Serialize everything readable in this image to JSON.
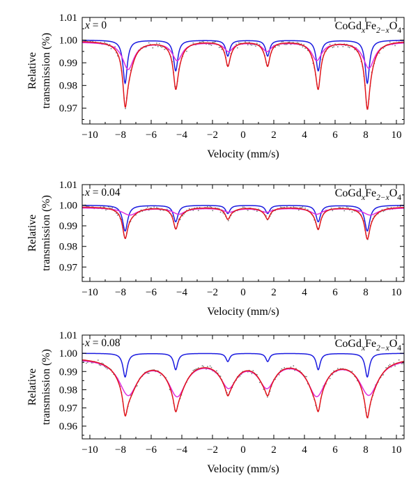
{
  "figure": {
    "x_axis_label": "Velocity (mm/s)",
    "y_axis_label_line1": "Relative",
    "y_axis_label_line2": "transmission (%)",
    "formula_parts": [
      "CoGd",
      "x",
      "Fe",
      "2−x",
      "O",
      "4"
    ],
    "colors": {
      "total_fit": "#e0141b",
      "sextet_blue": "#1a1adf",
      "sextet_magenta": "#e02ee0",
      "experimental_points": "#777777"
    }
  },
  "chart_data": [
    {
      "type": "line",
      "annotation": "x = 0",
      "title": "CoGdxFe2−xO4",
      "xlabel": "Velocity (mm/s)",
      "ylabel": "Relative transmission (%)",
      "xlim": [
        -10.5,
        10.5
      ],
      "ylim": [
        0.963,
        1.01
      ],
      "xticks": [
        "−10",
        "−8",
        "−6",
        "−4",
        "−2",
        "0",
        "2",
        "4",
        "6",
        "8",
        "10"
      ],
      "yticks": [
        "1.01",
        "1.00",
        "0.99",
        "0.98",
        "0.97"
      ],
      "ytick_values": [
        1.01,
        1.0,
        0.99,
        0.98,
        0.97
      ],
      "grid": false,
      "baseline": 0.9995,
      "series": [
        {
          "role": "blue-sextet",
          "color": "#1a1adf",
          "baseline": 1.0,
          "lines": [
            {
              "pos": -7.7,
              "depth": 0.019,
              "width": 0.17
            },
            {
              "pos": -4.4,
              "depth": 0.0135,
              "width": 0.17
            },
            {
              "pos": -1.0,
              "depth": 0.007,
              "width": 0.16
            },
            {
              "pos": 1.6,
              "depth": 0.007,
              "width": 0.16
            },
            {
              "pos": 4.9,
              "depth": 0.0135,
              "width": 0.17
            },
            {
              "pos": 8.1,
              "depth": 0.019,
              "width": 0.17
            }
          ]
        },
        {
          "role": "magenta-sextet",
          "color": "#e02ee0",
          "baseline": 0.9992,
          "lines": [
            {
              "pos": -7.5,
              "depth": 0.012,
              "width": 0.45
            },
            {
              "pos": -4.3,
              "depth": 0.008,
              "width": 0.4
            },
            {
              "pos": -0.95,
              "depth": 0.004,
              "width": 0.35
            },
            {
              "pos": 1.55,
              "depth": 0.004,
              "width": 0.35
            },
            {
              "pos": 4.8,
              "depth": 0.008,
              "width": 0.4
            },
            {
              "pos": 8.2,
              "depth": 0.0115,
              "width": 0.45
            }
          ]
        },
        {
          "role": "total-fit",
          "color": "#e0141b",
          "sum_of": [
            "blue-sextet",
            "magenta-sextet"
          ]
        }
      ]
    },
    {
      "type": "line",
      "annotation": "x = 0.04",
      "title": "CoGdxFe2−xO4",
      "xlabel": "Velocity (mm/s)",
      "ylabel": "Relative transmission (%)",
      "xlim": [
        -10.5,
        10.5
      ],
      "ylim": [
        0.963,
        1.01
      ],
      "xticks": [
        "−10",
        "−8",
        "−6",
        "−4",
        "−2",
        "0",
        "2",
        "4",
        "6",
        "8",
        "10"
      ],
      "yticks": [
        "1.01",
        "1.00",
        "0.99",
        "0.98",
        "0.97"
      ],
      "ytick_values": [
        1.01,
        1.0,
        0.99,
        0.98,
        0.97
      ],
      "grid": false,
      "baseline": 0.9995,
      "series": [
        {
          "role": "blue-sextet",
          "color": "#1a1adf",
          "baseline": 1.0,
          "lines": [
            {
              "pos": -7.7,
              "depth": 0.0125,
              "width": 0.2
            },
            {
              "pos": -4.4,
              "depth": 0.008,
              "width": 0.18
            },
            {
              "pos": -1.0,
              "depth": 0.004,
              "width": 0.17
            },
            {
              "pos": 1.6,
              "depth": 0.004,
              "width": 0.17
            },
            {
              "pos": 4.9,
              "depth": 0.008,
              "width": 0.18
            },
            {
              "pos": 8.1,
              "depth": 0.0125,
              "width": 0.2
            }
          ]
        },
        {
          "role": "magenta-sextet",
          "color": "#e02ee0",
          "baseline": 0.9988,
          "lines": [
            {
              "pos": -7.4,
              "depth": 0.0035,
              "width": 0.6
            },
            {
              "pos": -4.2,
              "depth": 0.003,
              "width": 0.5
            },
            {
              "pos": -0.9,
              "depth": 0.002,
              "width": 0.5
            },
            {
              "pos": 1.5,
              "depth": 0.002,
              "width": 0.5
            },
            {
              "pos": 4.8,
              "depth": 0.003,
              "width": 0.5
            },
            {
              "pos": 8.3,
              "depth": 0.0035,
              "width": 0.6
            }
          ]
        },
        {
          "role": "total-fit",
          "color": "#e0141b",
          "sum_of": [
            "blue-sextet",
            "magenta-sextet"
          ]
        }
      ]
    },
    {
      "type": "line",
      "annotation": "x = 0.08",
      "title": "CoGdxFe2−xO4",
      "xlabel": "Velocity (mm/s)",
      "ylabel": "Relative transmission (%)",
      "xlim": [
        -10.5,
        10.5
      ],
      "ylim": [
        0.953,
        1.01
      ],
      "xticks": [
        "−10",
        "−8",
        "−6",
        "−4",
        "−2",
        "0",
        "2",
        "4",
        "6",
        "8",
        "10"
      ],
      "yticks": [
        "1.01",
        "1.00",
        "0.99",
        "0.98",
        "0.97",
        "0.96"
      ],
      "ytick_values": [
        1.01,
        1.0,
        0.99,
        0.98,
        0.97,
        0.96
      ],
      "grid": false,
      "baseline": 0.9995,
      "series": [
        {
          "role": "blue-sextet",
          "color": "#1a1adf",
          "baseline": 1.0,
          "lines": [
            {
              "pos": -7.7,
              "depth": 0.013,
              "width": 0.17
            },
            {
              "pos": -4.4,
              "depth": 0.009,
              "width": 0.16
            },
            {
              "pos": -1.0,
              "depth": 0.0045,
              "width": 0.15
            },
            {
              "pos": 1.6,
              "depth": 0.0045,
              "width": 0.15
            },
            {
              "pos": 4.9,
              "depth": 0.009,
              "width": 0.16
            },
            {
              "pos": 8.1,
              "depth": 0.013,
              "width": 0.17
            }
          ]
        },
        {
          "role": "magenta-sextet",
          "color": "#e02ee0",
          "baseline": 0.9975,
          "lines": [
            {
              "pos": -7.5,
              "depth": 0.0195,
              "width": 0.75
            },
            {
              "pos": -4.3,
              "depth": 0.0195,
              "width": 0.7
            },
            {
              "pos": -0.95,
              "depth": 0.0145,
              "width": 0.65
            },
            {
              "pos": 1.55,
              "depth": 0.0145,
              "width": 0.65
            },
            {
              "pos": 4.8,
              "depth": 0.0195,
              "width": 0.7
            },
            {
              "pos": 8.2,
              "depth": 0.0195,
              "width": 0.75
            }
          ]
        },
        {
          "role": "total-fit",
          "color": "#e0141b",
          "sum_of": [
            "blue-sextet",
            "magenta-sextet"
          ]
        }
      ]
    }
  ]
}
